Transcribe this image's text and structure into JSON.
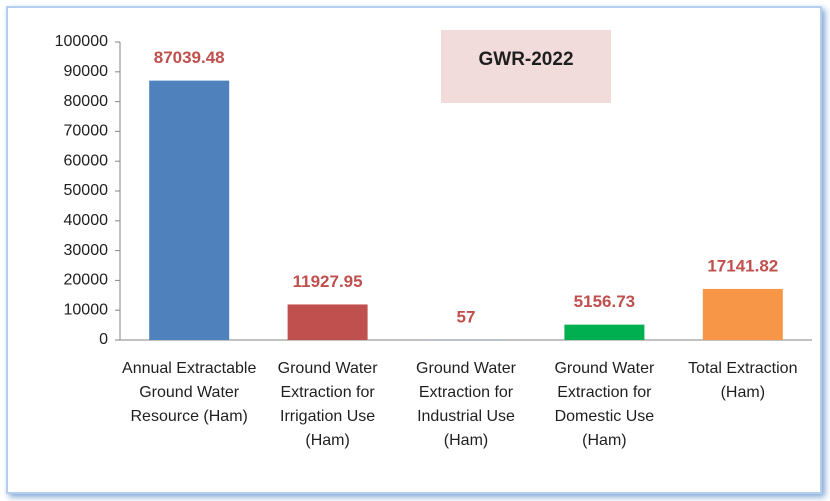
{
  "chart_data": {
    "type": "bar",
    "annotation": "GWR-2022",
    "categories": [
      "Annual Extractable Ground Water Resource (Ham)",
      "Ground Water Extraction for Irrigation Use (Ham)",
      "Ground Water Extraction for Industrial Use (Ham)",
      "Ground Water Extraction for Domestic Use (Ham)",
      "Total Extraction (Ham)"
    ],
    "values": [
      87039.48,
      11927.95,
      57,
      5156.73,
      17141.82
    ],
    "colors": [
      "#4f81bd",
      "#c0504d",
      "#4f81bd",
      "#00b050",
      "#f79646"
    ],
    "ylim": [
      0,
      100000
    ],
    "yticks": [
      0,
      10000,
      20000,
      30000,
      40000,
      50000,
      60000,
      70000,
      80000,
      90000,
      100000
    ],
    "grid": false
  }
}
